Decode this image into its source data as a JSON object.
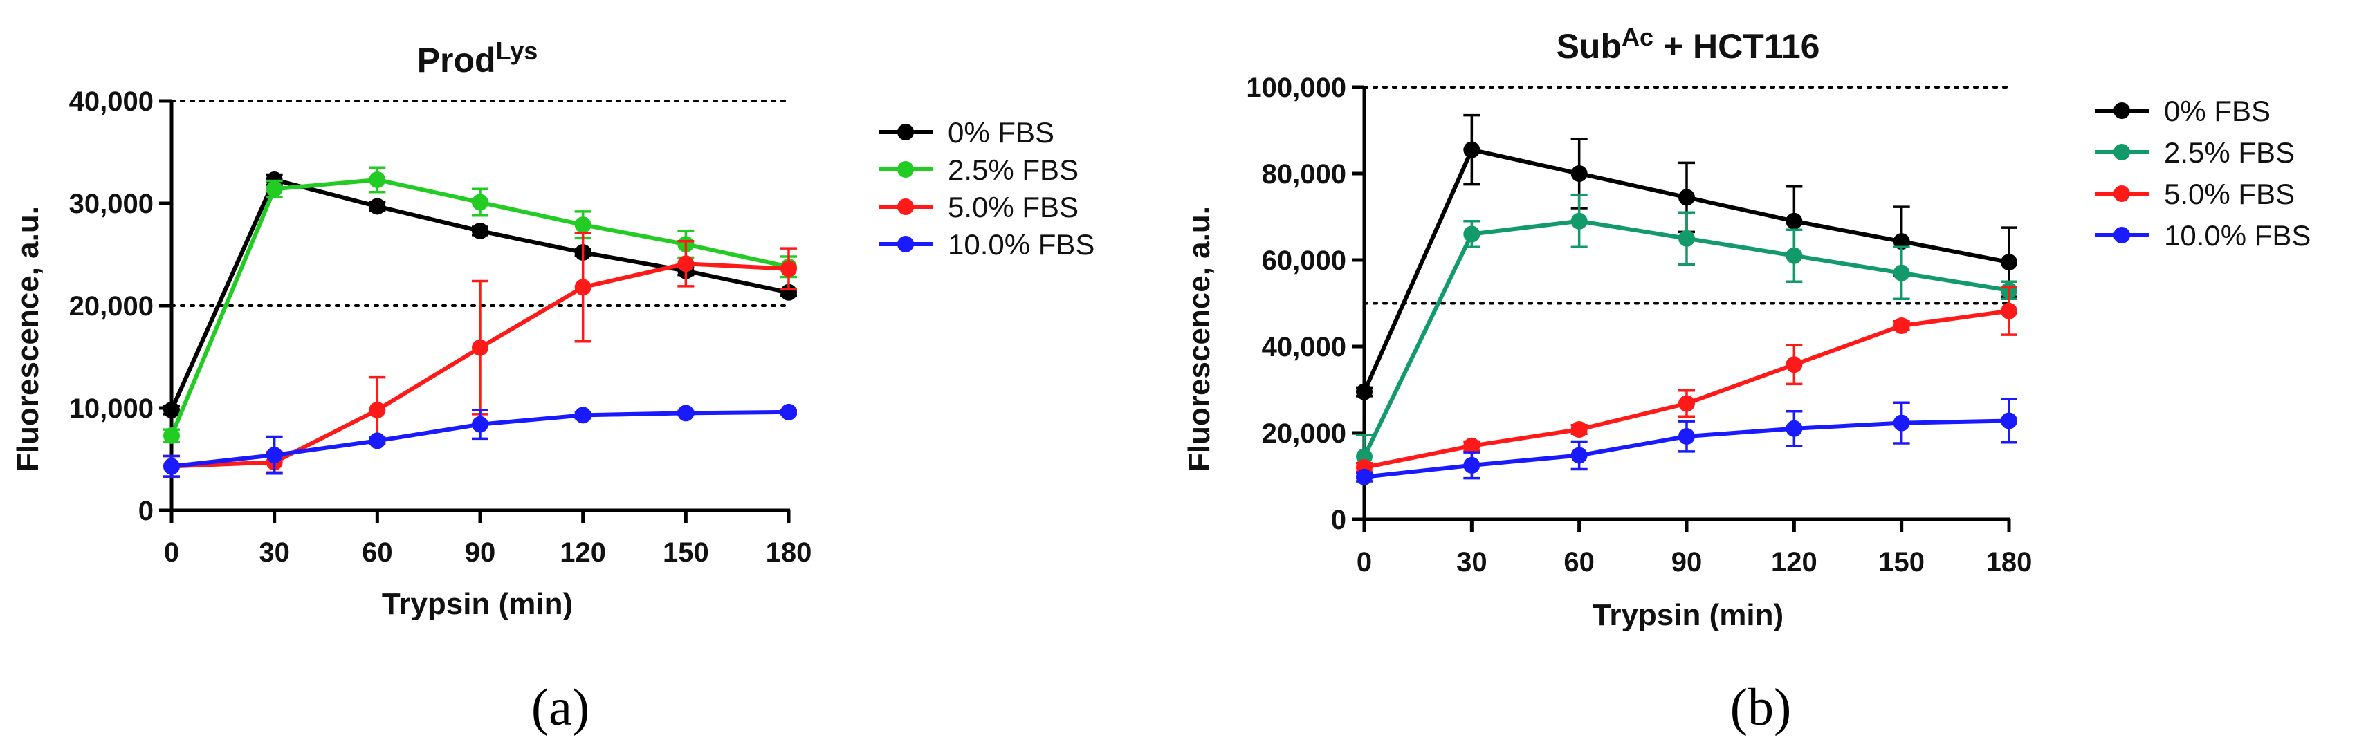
{
  "chart_data": [
    {
      "type": "line",
      "title": "Prod",
      "title_superscript": "Lys",
      "xlabel": "Trypsin (min)",
      "ylabel": "Fluorescence, a.u.",
      "x": [
        0,
        30,
        60,
        90,
        120,
        150,
        180
      ],
      "x_ticks": [
        "0",
        "30",
        "60",
        "90",
        "120",
        "150",
        "180"
      ],
      "ylim": [
        0,
        40000
      ],
      "y_ticks": [
        "0",
        "10,000",
        "20,000",
        "30,000",
        "40,000"
      ],
      "y_tick_values": [
        0,
        10000,
        20000,
        30000,
        40000
      ],
      "reference_lines": [
        20000,
        40000
      ],
      "legend_position": "right",
      "panel_label": "(a)",
      "series": [
        {
          "name": "0% FBS",
          "color": "#000000",
          "values": [
            9800,
            32300,
            29700,
            27300,
            25200,
            23400,
            21300
          ],
          "errors": [
            400,
            500,
            400,
            400,
            300,
            400,
            300
          ]
        },
        {
          "name": "2.5% FBS",
          "color": "#22cc22",
          "values": [
            7300,
            31400,
            32300,
            30100,
            27900,
            26000,
            23800
          ],
          "errors": [
            600,
            800,
            1200,
            1300,
            1300,
            1300,
            1000
          ]
        },
        {
          "name": "5.0% FBS",
          "color": "#ff1a1a",
          "values": [
            4300,
            4700,
            9800,
            15900,
            21800,
            24100,
            23600
          ],
          "errors": [
            1000,
            1000,
            3200,
            6500,
            5300,
            2200,
            2000
          ]
        },
        {
          "name": "10.0% FBS",
          "color": "#1a1aff",
          "values": [
            4300,
            5400,
            6800,
            8400,
            9300,
            9500,
            9600
          ],
          "errors": [
            1000,
            1800,
            300,
            1400,
            300,
            200,
            200
          ]
        }
      ]
    },
    {
      "type": "line",
      "title": "Sub",
      "title_superscript": "Ac",
      "title_suffix": " + HCT116",
      "xlabel": "Trypsin (min)",
      "ylabel": "Fluorescence, a.u.",
      "x": [
        0,
        30,
        60,
        90,
        120,
        150,
        180
      ],
      "x_ticks": [
        "0",
        "30",
        "60",
        "90",
        "120",
        "150",
        "180"
      ],
      "ylim": [
        0,
        100000
      ],
      "y_ticks": [
        "0",
        "20,000",
        "40,000",
        "60,000",
        "80,000",
        "100,000"
      ],
      "y_tick_values": [
        0,
        20000,
        40000,
        60000,
        80000,
        100000
      ],
      "reference_lines": [
        50000,
        100000
      ],
      "legend_position": "right",
      "panel_label": "(b)",
      "series": [
        {
          "name": "0% FBS",
          "color": "#000000",
          "values": [
            29500,
            85500,
            80000,
            74500,
            69000,
            64300,
            59500
          ],
          "errors": [
            1000,
            8000,
            8000,
            8000,
            8000,
            8000,
            8000
          ]
        },
        {
          "name": "2.5% FBS",
          "color": "#129a6a",
          "values": [
            14500,
            66000,
            69000,
            65000,
            61000,
            57000,
            53000
          ],
          "errors": [
            5000,
            3000,
            6000,
            6000,
            6000,
            6000,
            2000
          ]
        },
        {
          "name": "5.0% FBS",
          "color": "#ff1a1a",
          "values": [
            12000,
            17000,
            20800,
            26800,
            35800,
            44800,
            48200
          ],
          "errors": [
            1000,
            1000,
            1000,
            3000,
            4500,
            1000,
            5500
          ]
        },
        {
          "name": "10.0% FBS",
          "color": "#1a1aff",
          "values": [
            9800,
            12500,
            14800,
            19200,
            21000,
            22300,
            22800
          ],
          "errors": [
            1000,
            3000,
            3200,
            3500,
            4000,
            4700,
            5000
          ]
        }
      ]
    }
  ]
}
